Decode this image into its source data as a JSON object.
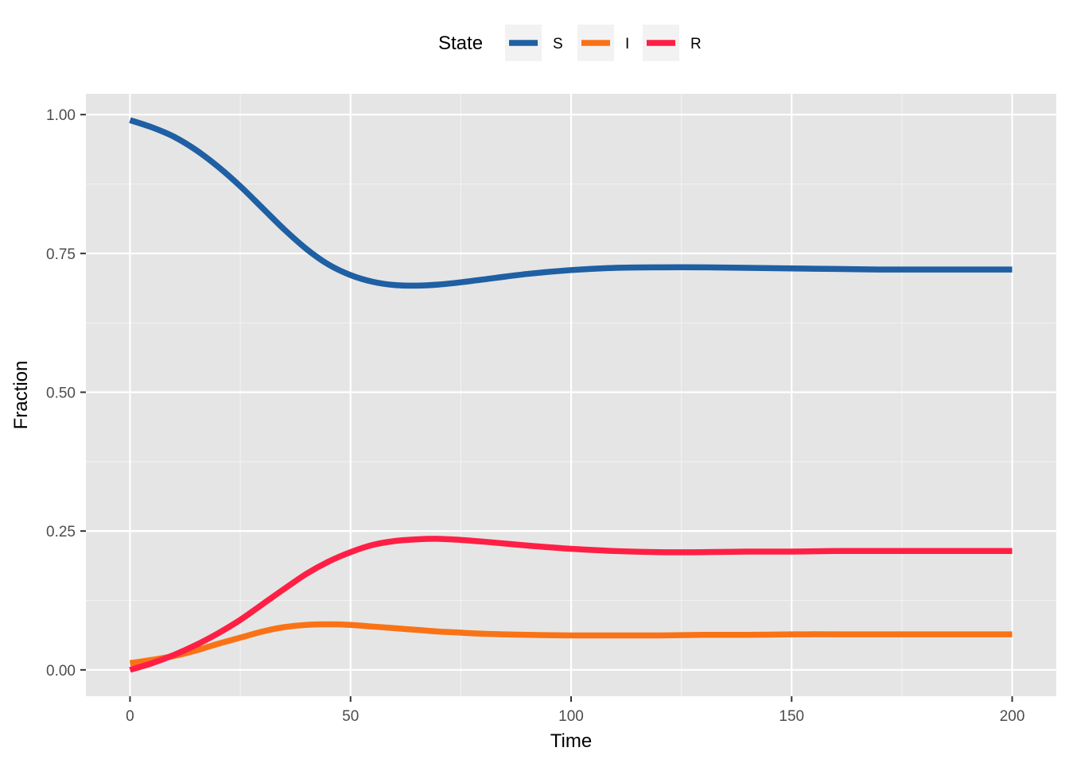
{
  "chart_data": {
    "type": "line",
    "xlabel": "Time",
    "ylabel": "Fraction",
    "xlim": [
      -10,
      210
    ],
    "ylim": [
      -0.0475,
      1.0375
    ],
    "x_ticks": [
      0,
      50,
      100,
      150,
      200
    ],
    "x_tick_labels": [
      "0",
      "50",
      "100",
      "150",
      "200"
    ],
    "y_ticks": [
      0,
      0.25,
      0.5,
      0.75,
      1.0
    ],
    "y_tick_labels": [
      "0.00",
      "0.25",
      "0.50",
      "0.75",
      "1.00"
    ],
    "grid": true,
    "legend": {
      "title": "State",
      "position": "top",
      "entries": [
        "S",
        "I",
        "R"
      ]
    },
    "series": [
      {
        "name": "S",
        "color": "#1f5fa3",
        "x": [
          0,
          5,
          10,
          15,
          20,
          25,
          30,
          35,
          40,
          45,
          50,
          55,
          60,
          65,
          70,
          75,
          80,
          90,
          100,
          110,
          120,
          130,
          140,
          150,
          160,
          170,
          180,
          190,
          200
        ],
        "y": [
          0.99,
          0.977,
          0.96,
          0.936,
          0.906,
          0.871,
          0.832,
          0.793,
          0.758,
          0.73,
          0.711,
          0.699,
          0.693,
          0.692,
          0.694,
          0.698,
          0.703,
          0.713,
          0.72,
          0.724,
          0.725,
          0.725,
          0.724,
          0.723,
          0.722,
          0.721,
          0.721,
          0.721,
          0.721
        ]
      },
      {
        "name": "I",
        "color": "#f97316",
        "x": [
          0,
          5,
          10,
          15,
          20,
          25,
          30,
          35,
          40,
          45,
          50,
          55,
          60,
          65,
          70,
          75,
          80,
          90,
          100,
          110,
          120,
          130,
          140,
          150,
          160,
          170,
          180,
          190,
          200
        ],
        "y": [
          0.012,
          0.018,
          0.025,
          0.035,
          0.047,
          0.058,
          0.069,
          0.077,
          0.081,
          0.082,
          0.081,
          0.078,
          0.075,
          0.072,
          0.069,
          0.067,
          0.065,
          0.063,
          0.062,
          0.062,
          0.062,
          0.063,
          0.063,
          0.064,
          0.064,
          0.064,
          0.064,
          0.064,
          0.064
        ]
      },
      {
        "name": "R",
        "color": "#ff1f45",
        "x": [
          0,
          5,
          10,
          15,
          20,
          25,
          30,
          35,
          40,
          45,
          50,
          55,
          60,
          65,
          70,
          75,
          80,
          90,
          100,
          110,
          120,
          130,
          140,
          150,
          160,
          170,
          180,
          190,
          200
        ],
        "y": [
          0.0,
          0.012,
          0.027,
          0.045,
          0.066,
          0.09,
          0.118,
          0.146,
          0.173,
          0.195,
          0.212,
          0.225,
          0.232,
          0.235,
          0.236,
          0.234,
          0.231,
          0.224,
          0.218,
          0.214,
          0.212,
          0.212,
          0.213,
          0.213,
          0.214,
          0.214,
          0.214,
          0.214,
          0.214
        ]
      }
    ]
  }
}
